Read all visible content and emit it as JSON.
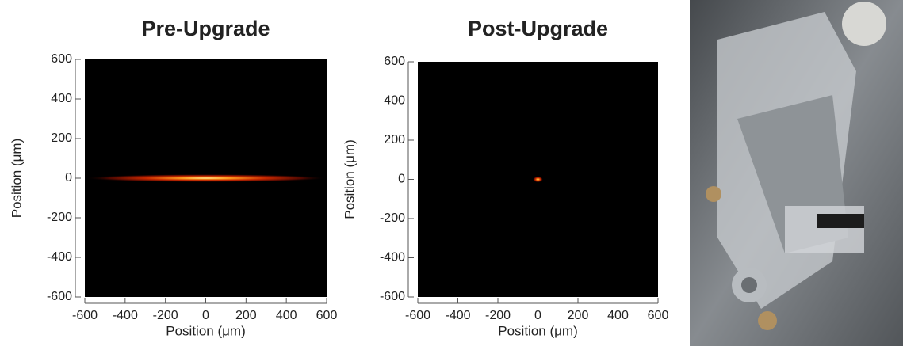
{
  "chart_data": [
    {
      "type": "beam",
      "title": "Pre-Upgrade",
      "x_label": "Position (μm)",
      "y_label": "Position (μm)",
      "xlim": [
        -600,
        600
      ],
      "ylim": [
        -600,
        600
      ],
      "xticks": [
        -600,
        -400,
        -200,
        0,
        200,
        400,
        600
      ],
      "yticks": [
        -600,
        -400,
        -200,
        0,
        200,
        400,
        600
      ],
      "spot": {
        "x": 0,
        "y": 0,
        "width": 1200,
        "height": 40
      }
    },
    {
      "type": "beam",
      "title": "Post-Upgrade",
      "x_label": "Position (μm)",
      "y_label": "Position (μm)",
      "xlim": [
        -600,
        600
      ],
      "ylim": [
        -600,
        600
      ],
      "xticks": [
        -600,
        -400,
        -200,
        0,
        200,
        400,
        600
      ],
      "yticks": [
        -600,
        -400,
        -200,
        0,
        200,
        400,
        600
      ],
      "spot": {
        "x": 0,
        "y": 0,
        "width": 50,
        "height": 30
      }
    }
  ]
}
